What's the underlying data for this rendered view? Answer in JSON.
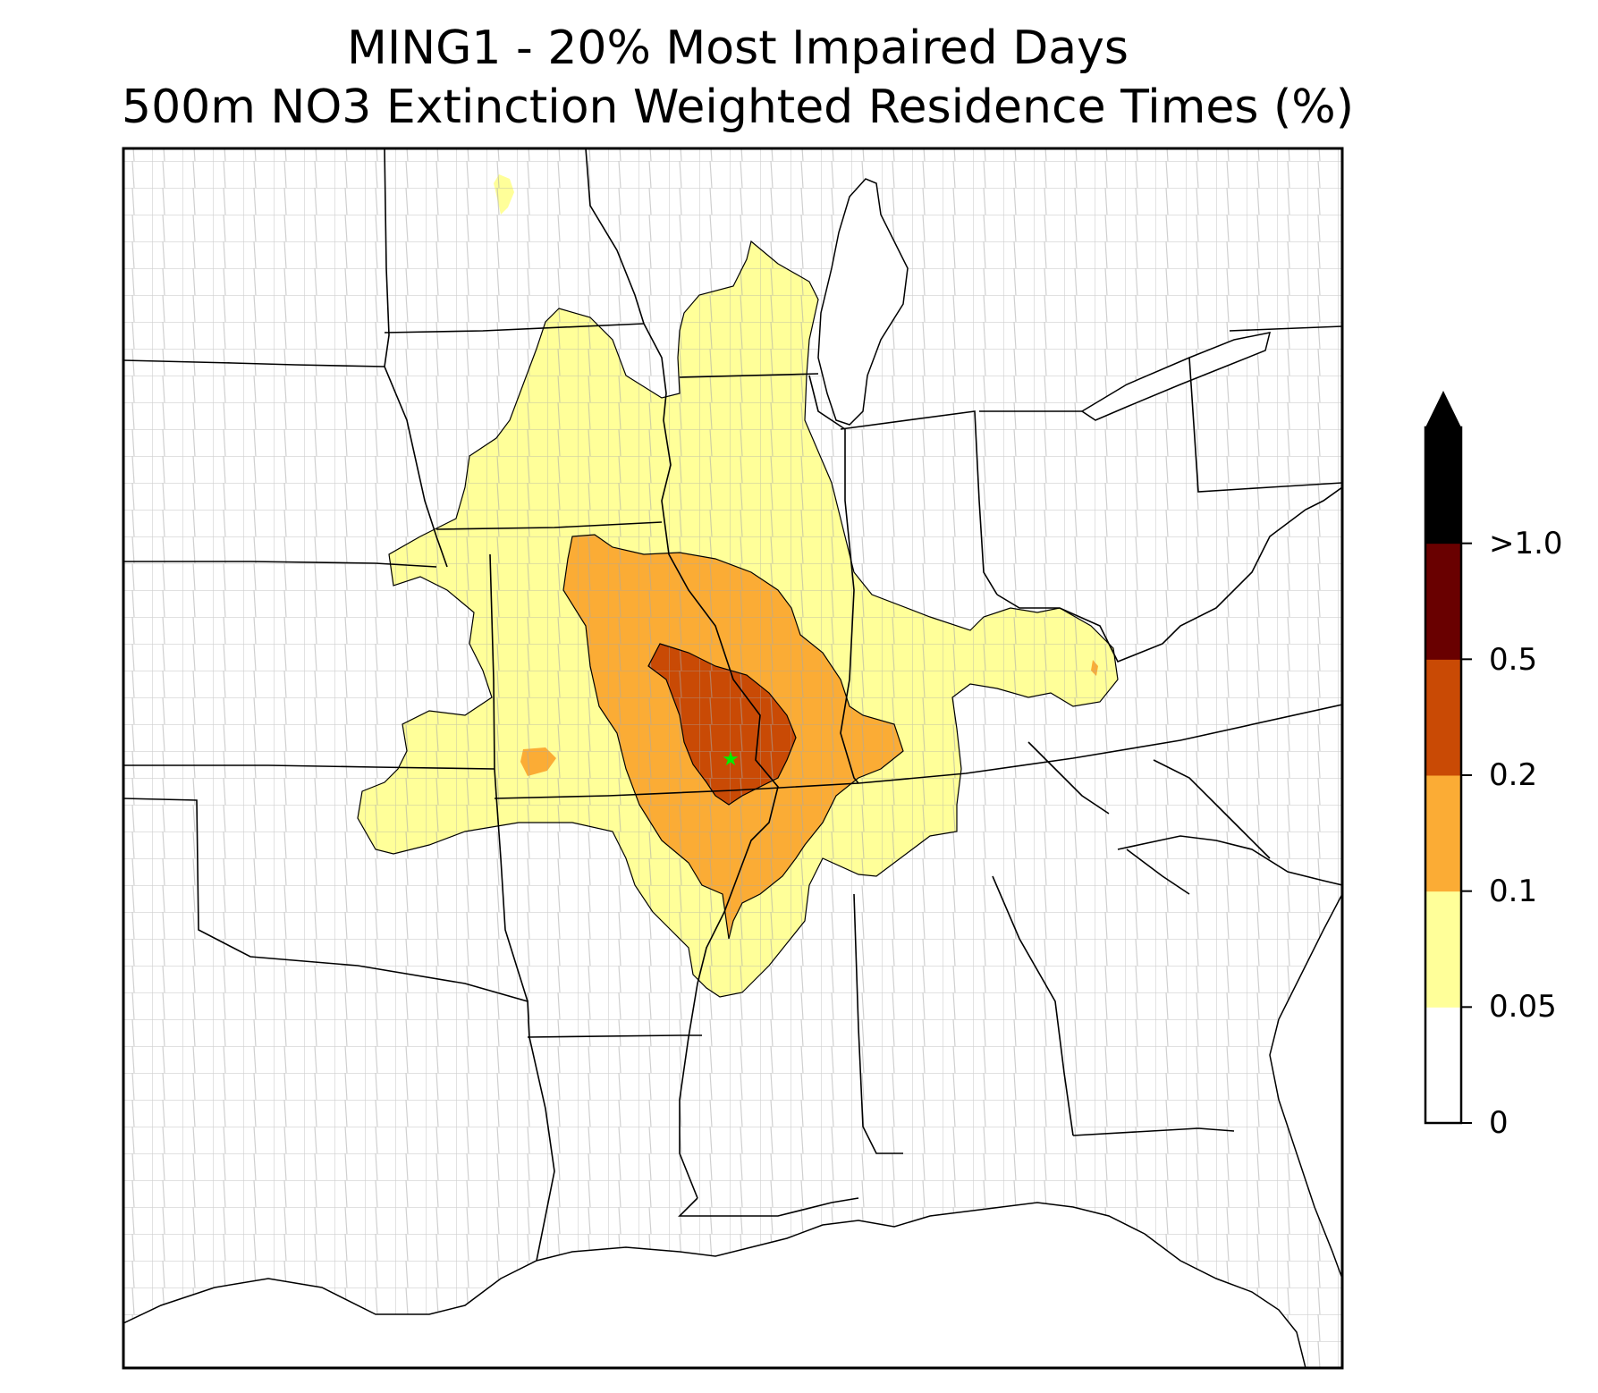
{
  "title": {
    "line1": "MING1 - 20% Most Impaired Days",
    "line2": "500m NO3 Extinction Weighted Residence Times (%)"
  },
  "colorbar": {
    "levels": [
      "0",
      "0.05",
      "0.1",
      "0.2",
      "0.5",
      ">1.0"
    ],
    "colors": [
      "#ffffff",
      "#ffff99",
      "#fbac35",
      "#c94a05",
      "#690000",
      "#000000"
    ],
    "extend": "max"
  },
  "map": {
    "site_marker_color": "#00ee00",
    "state_line_color": "#000000",
    "county_line_color": "#a0a0a0"
  }
}
